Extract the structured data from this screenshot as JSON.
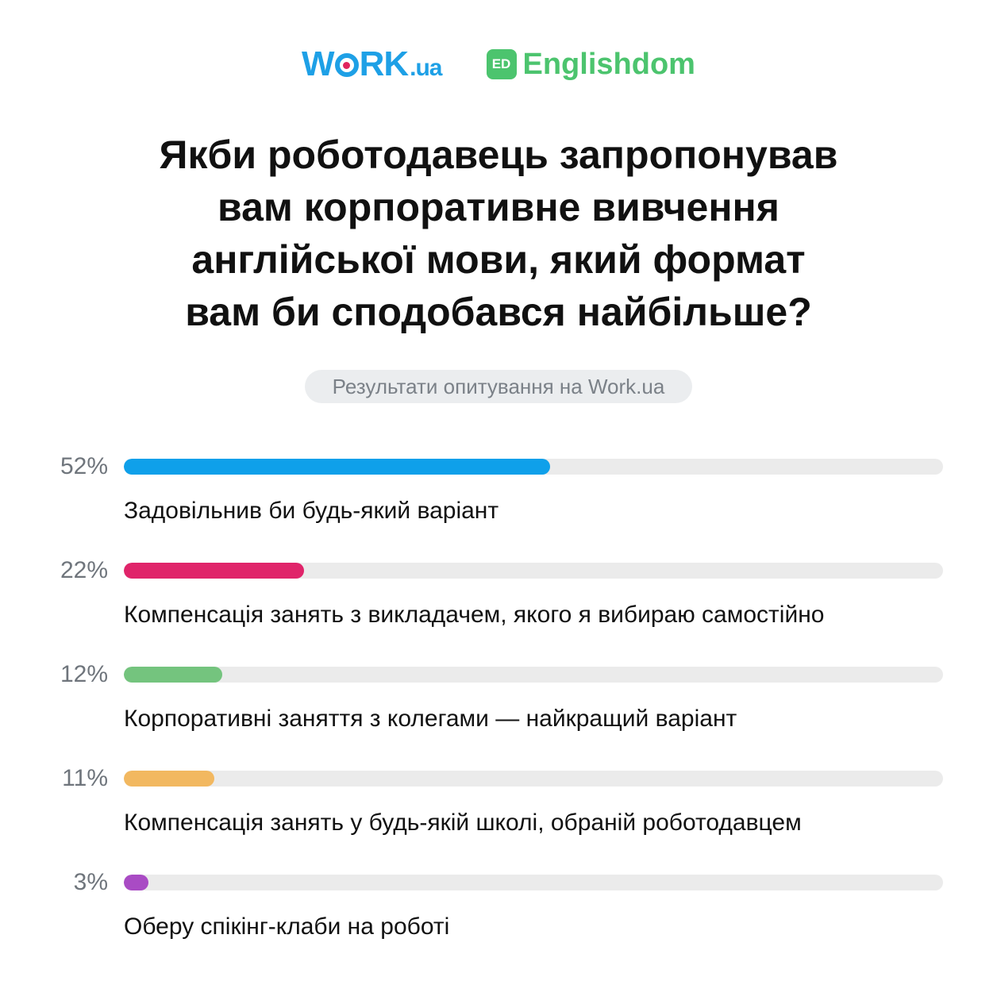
{
  "logos": {
    "work_main": "W",
    "work_rest": "RK",
    "work_suffix": ".ua",
    "ed_badge": "ED",
    "ed_name": "Englishdom"
  },
  "question": "Якби роботодавець запропонував\nвам корпоративне вивчення\nанглійської мови, який формат\nвам би сподобався найбільше?",
  "subtitle": "Результати опитування на Work.ua",
  "chart_data": {
    "type": "bar",
    "orientation": "horizontal",
    "title": "Якби роботодавець запропонував вам корпоративне вивчення англійської мови, який формат вам би сподобався найбільше?",
    "subtitle": "Результати опитування на Work.ua",
    "xlim": [
      0,
      100
    ],
    "unit": "%",
    "grid": false,
    "categories": [
      "Задовільнив би будь-який варіант",
      "Компенсація занять з викладачем, якого я вибираю самостійно",
      "Корпоративні заняття з колегами — найкращий варіант",
      "Компенсація занять у будь-якій школі, обраній роботодавцем",
      "Оберу спікінг-клаби на роботі"
    ],
    "values": [
      52,
      22,
      12,
      11,
      3
    ],
    "value_labels": [
      "52%",
      "22%",
      "12%",
      "11%",
      "3%"
    ],
    "colors": [
      "#0fa0ea",
      "#e0246a",
      "#74c47e",
      "#f2b860",
      "#a94bc4"
    ],
    "track_color": "#ebebeb"
  }
}
